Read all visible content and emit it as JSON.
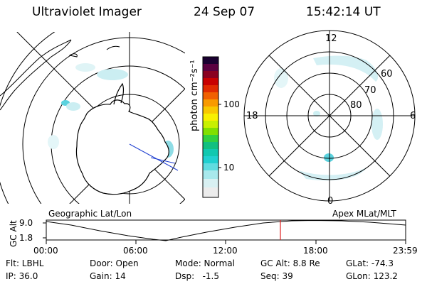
{
  "header": {
    "title": "Ultraviolet Imager",
    "date": "24 Sep 07",
    "time": "15:42:14 UT"
  },
  "colorbar": {
    "unit_label": "photon cm⁻²s⁻¹",
    "ticks": [
      "100",
      "10"
    ],
    "scale": "log"
  },
  "polar_plot": {
    "mlt_labels": [
      "12",
      "18",
      "6",
      "0"
    ],
    "lat_labels": [
      "60",
      "70",
      "80"
    ]
  },
  "altitude_strip": {
    "left_title": "Geographic Lat/Lon",
    "right_title": "Apex MLat/MLT",
    "axis_label": "GC Alt",
    "y_ticks": [
      "9.0",
      "1.8"
    ],
    "x_ticks": [
      "00:00",
      "06:00",
      "12:00",
      "18:00",
      "23:59"
    ],
    "current_marker_time": "15:42"
  },
  "info": {
    "filter": "Flt: LBHL",
    "ip": "IP: 36.0",
    "door": "Door: Open",
    "gain": "Gain: 14",
    "mode": "Mode: Normal",
    "dsp": "Dsp:   -1.5",
    "gc_alt": "GC Alt: 8.8 Re",
    "seq": "Seq: 39",
    "glat": "GLat: -74.3",
    "glon": "GLon: 123.2"
  },
  "colors": {
    "marker": "#e02020",
    "coast": "#000000",
    "los": "#1f3fd0",
    "emission": "#9cd8e0"
  }
}
